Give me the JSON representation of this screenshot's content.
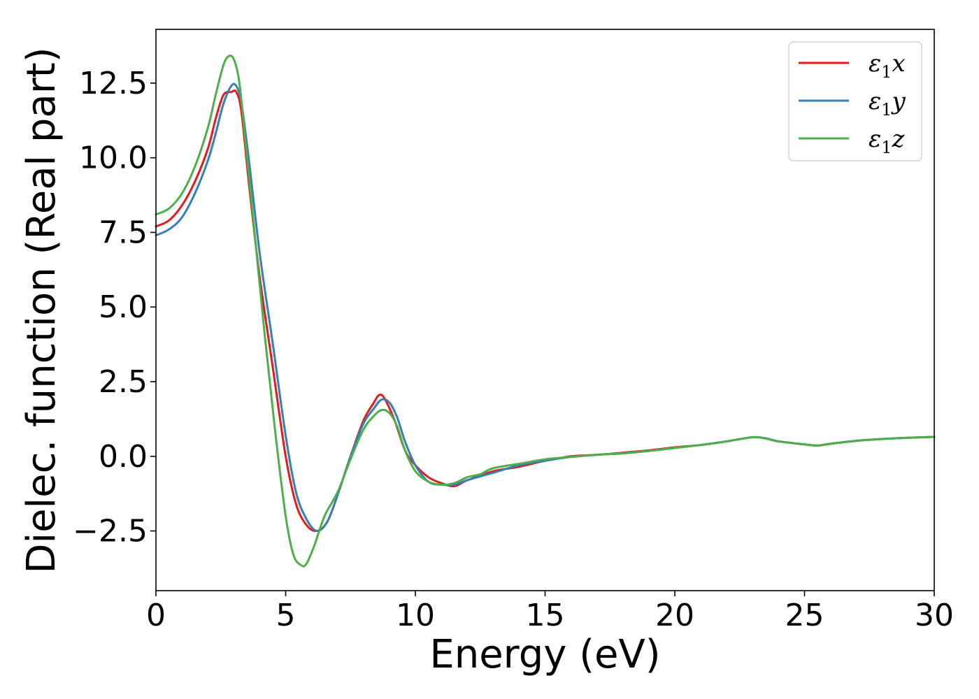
{
  "chart_data": {
    "type": "line",
    "title": "",
    "xlabel": "Energy (eV)",
    "ylabel": "Dielec. function (Real part)",
    "xlim": [
      0,
      30
    ],
    "ylim": [
      -4.5,
      14.3
    ],
    "xticks": [
      0,
      5,
      10,
      15,
      20,
      25,
      30
    ],
    "xtick_labels": [
      "0",
      "5",
      "10",
      "15",
      "20",
      "25",
      "30"
    ],
    "yticks": [
      -2.5,
      0,
      2.5,
      5,
      7.5,
      10,
      12.5
    ],
    "ytick_labels": [
      "−2.5",
      "0.0",
      "2.5",
      "5.0",
      "7.5",
      "10.0",
      "12.5"
    ],
    "grid": false,
    "legend_position": "top-right",
    "series": [
      {
        "name": "ε₁x",
        "legend_base": "ε",
        "legend_sub": "1",
        "legend_var": "x",
        "color": "#e41a1c",
        "x": [
          0,
          0.5,
          1,
          1.5,
          2,
          2.3,
          2.6,
          2.9,
          3.1,
          3.3,
          3.6,
          4,
          4.5,
          5,
          5.4,
          5.8,
          6.2,
          6.6,
          7,
          7.5,
          8,
          8.4,
          8.6,
          8.8,
          9.2,
          9.6,
          10,
          10.5,
          11,
          11.5,
          12,
          13,
          14,
          15,
          16,
          17,
          18,
          19,
          20,
          21,
          22,
          23,
          23.5,
          24,
          25,
          25.5,
          26,
          27,
          28,
          29,
          30
        ],
        "y": [
          7.7,
          7.9,
          8.4,
          9.2,
          10.3,
          11.3,
          12.1,
          12.2,
          12.2,
          11.5,
          9.0,
          6.0,
          3.0,
          0.0,
          -1.6,
          -2.3,
          -2.5,
          -2.2,
          -1.3,
          0.0,
          1.2,
          1.8,
          2.05,
          1.95,
          1.2,
          0.2,
          -0.3,
          -0.7,
          -0.9,
          -1.0,
          -0.8,
          -0.5,
          -0.35,
          -0.15,
          0.0,
          0.05,
          0.12,
          0.2,
          0.3,
          0.38,
          0.5,
          0.64,
          0.6,
          0.5,
          0.4,
          0.36,
          0.42,
          0.52,
          0.58,
          0.62,
          0.65
        ]
      },
      {
        "name": "ε₁y",
        "legend_base": "ε",
        "legend_sub": "1",
        "legend_var": "y",
        "color": "#377eb8",
        "x": [
          0,
          0.5,
          1,
          1.5,
          2,
          2.3,
          2.6,
          2.9,
          3.1,
          3.3,
          3.6,
          4,
          4.5,
          5,
          5.4,
          5.8,
          6.2,
          6.6,
          7,
          7.5,
          8,
          8.4,
          8.7,
          9,
          9.3,
          9.6,
          10,
          10.5,
          11,
          11.5,
          12,
          13,
          14,
          15,
          16,
          17,
          18,
          19,
          20,
          21,
          22,
          23,
          23.5,
          24,
          25,
          25.5,
          26,
          27,
          28,
          29,
          30
        ],
        "y": [
          7.4,
          7.6,
          8.0,
          8.8,
          9.9,
          10.8,
          11.8,
          12.4,
          12.4,
          11.8,
          9.8,
          6.8,
          3.8,
          0.7,
          -1.2,
          -2.1,
          -2.5,
          -2.2,
          -1.3,
          0.0,
          1.1,
          1.6,
          1.9,
          1.8,
          1.3,
          0.5,
          -0.3,
          -0.85,
          -0.95,
          -0.95,
          -0.8,
          -0.55,
          -0.3,
          -0.15,
          -0.02,
          0.05,
          0.1,
          0.18,
          0.28,
          0.38,
          0.5,
          0.64,
          0.6,
          0.5,
          0.4,
          0.36,
          0.42,
          0.52,
          0.58,
          0.62,
          0.65
        ]
      },
      {
        "name": "ε₁z",
        "legend_base": "ε",
        "legend_sub": "1",
        "legend_var": "z",
        "color": "#4daf4a",
        "x": [
          0,
          0.5,
          1,
          1.5,
          2,
          2.3,
          2.6,
          2.8,
          3.0,
          3.2,
          3.4,
          3.8,
          4.2,
          4.6,
          5,
          5.3,
          5.6,
          5.8,
          6.1,
          6.5,
          7,
          7.5,
          8,
          8.4,
          8.7,
          9,
          9.3,
          9.6,
          10,
          10.5,
          11,
          11.5,
          12,
          12.5,
          13,
          14,
          15,
          16,
          17,
          18,
          19,
          20,
          21,
          22,
          23,
          23.5,
          24,
          25,
          25.5,
          26,
          27,
          28,
          29,
          30
        ],
        "y": [
          8.1,
          8.3,
          8.8,
          9.7,
          11.0,
          12.1,
          13.1,
          13.4,
          13.3,
          12.6,
          11.0,
          7.5,
          4.0,
          0.8,
          -2.0,
          -3.3,
          -3.65,
          -3.6,
          -3.0,
          -2.0,
          -1.2,
          -0.1,
          0.9,
          1.35,
          1.55,
          1.45,
          1.0,
          0.2,
          -0.5,
          -0.85,
          -0.95,
          -0.9,
          -0.7,
          -0.6,
          -0.4,
          -0.25,
          -0.1,
          -0.02,
          0.05,
          0.1,
          0.18,
          0.28,
          0.38,
          0.5,
          0.64,
          0.6,
          0.5,
          0.4,
          0.36,
          0.42,
          0.52,
          0.58,
          0.62,
          0.65
        ]
      }
    ]
  }
}
